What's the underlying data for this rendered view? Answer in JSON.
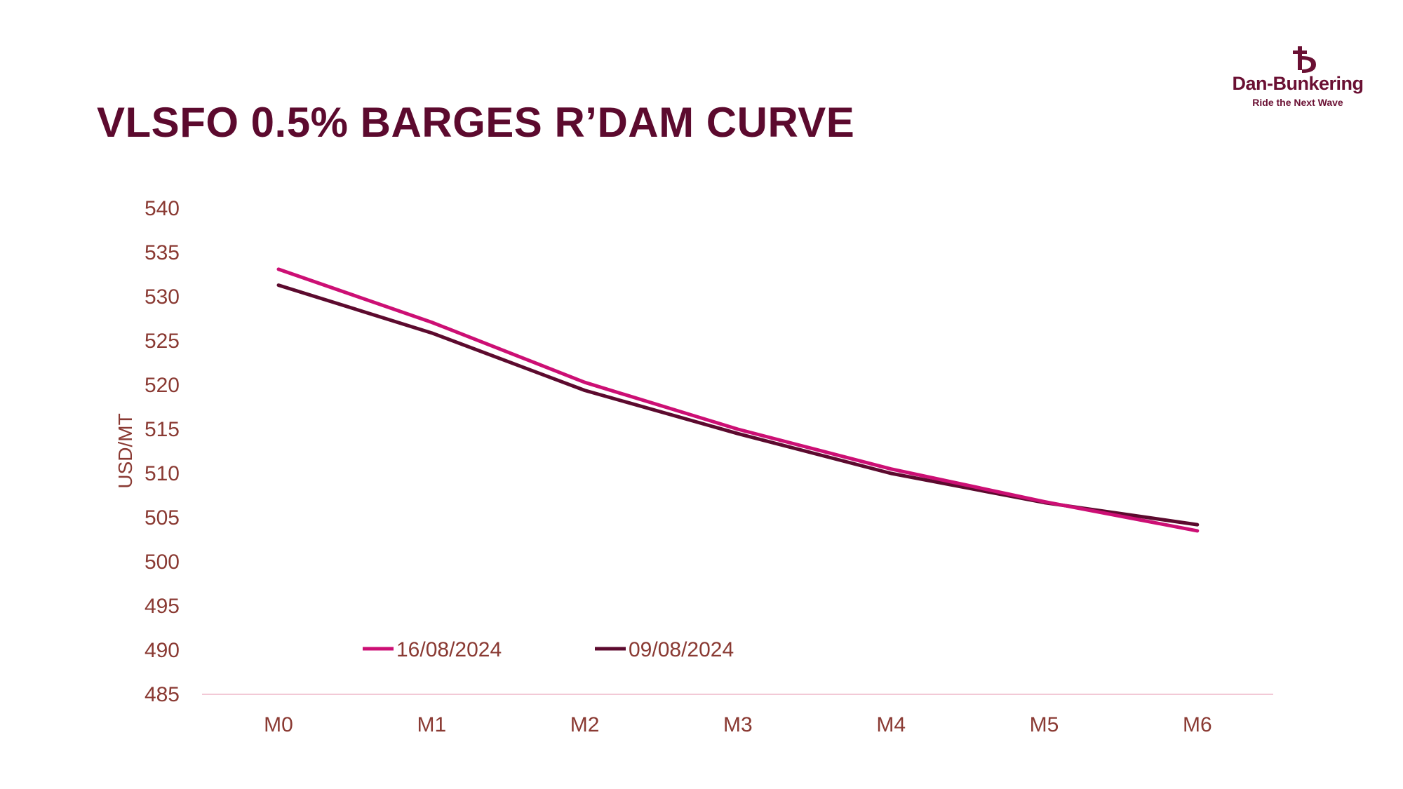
{
  "title": "VLSFO 0.5% BARGES R’DAM CURVE",
  "logo": {
    "name": "Dan-Bunkering",
    "tagline": "Ride the Next Wave",
    "icon": "anchor-icon",
    "color": "#6a1033"
  },
  "colors": {
    "title": "#5c0a2e",
    "axis_text": "#8a3a33",
    "baseline": "#f2c9d6"
  },
  "chart_data": {
    "type": "line",
    "title": "VLSFO 0.5% BARGES R’DAM CURVE",
    "xlabel": "",
    "ylabel": "USD/MT",
    "categories": [
      "M0",
      "M1",
      "M2",
      "M3",
      "M4",
      "M5",
      "M6"
    ],
    "ylim": [
      485,
      540
    ],
    "yticks": [
      540,
      535,
      530,
      525,
      520,
      515,
      510,
      505,
      500,
      495,
      490,
      485
    ],
    "grid": false,
    "legend_position": "inside-bottom-left",
    "series": [
      {
        "name": "16/08/2024",
        "color": "#cc0f74",
        "values": [
          533.1,
          527.1,
          520.3,
          515.0,
          510.5,
          506.8,
          503.5
        ]
      },
      {
        "name": "09/08/2024",
        "color": "#5c0a2e",
        "values": [
          531.3,
          525.9,
          519.4,
          514.5,
          510.0,
          506.7,
          504.2
        ]
      }
    ]
  }
}
